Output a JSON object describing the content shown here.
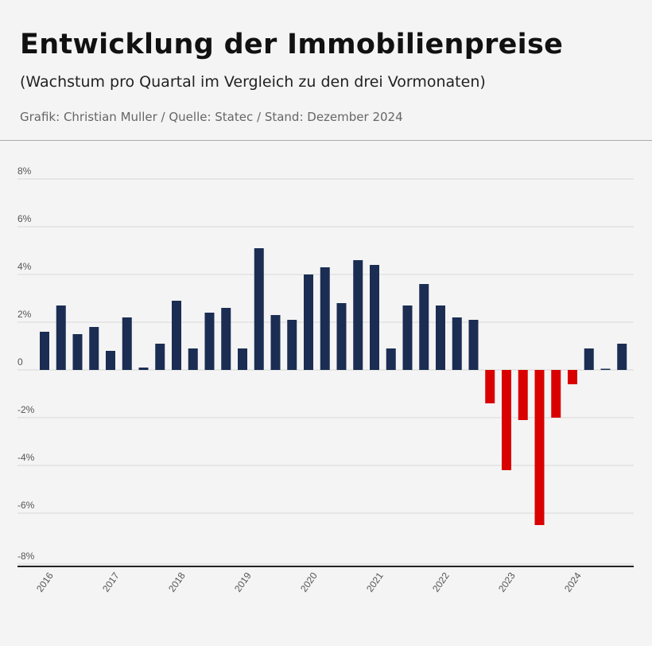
{
  "header": {
    "title": "Entwicklung der Immobilienpreise",
    "subtitle": "(Wachstum pro Quartal im Vergleich zu den drei Vormonaten)",
    "source": "Grafik: Christian Muller / Quelle: Statec / Stand: Dezember 2024"
  },
  "chart_data": {
    "type": "bar",
    "title": "Entwicklung der Immobilienpreise",
    "subtitle": "(Wachstum pro Quartal im Vergleich zu den drei Vormonaten)",
    "xlabel": "",
    "ylabel": "",
    "ylim": [
      -8,
      8
    ],
    "yticks": [
      "8%",
      "6%",
      "4%",
      "2%",
      "0",
      "-2%",
      "-4%",
      "-6%",
      "-8%"
    ],
    "ytick_values": [
      8,
      6,
      4,
      2,
      0,
      -2,
      -4,
      -6,
      -8
    ],
    "xtick_labels": [
      "2016",
      "2017",
      "2018",
      "2019",
      "2020",
      "2021",
      "2022",
      "2023",
      "2024"
    ],
    "grid": true,
    "categories": [
      "2016 Q1",
      "2016 Q2",
      "2016 Q3",
      "2016 Q4",
      "2017 Q1",
      "2017 Q2",
      "2017 Q3",
      "2017 Q4",
      "2018 Q1",
      "2018 Q2",
      "2018 Q3",
      "2018 Q4",
      "2019 Q1",
      "2019 Q2",
      "2019 Q3",
      "2019 Q4",
      "2020 Q1",
      "2020 Q2",
      "2020 Q3",
      "2020 Q4",
      "2021 Q1",
      "2021 Q2",
      "2021 Q3",
      "2021 Q4",
      "2022 Q1",
      "2022 Q2",
      "2022 Q3",
      "2022 Q4",
      "2023 Q1",
      "2023 Q2",
      "2023 Q3",
      "2023 Q4",
      "2024 Q1",
      "2024 Q2",
      "2024 Q3",
      "2024 Q4"
    ],
    "values": [
      1.6,
      2.7,
      1.5,
      1.8,
      0.8,
      2.2,
      0.1,
      1.1,
      2.9,
      0.9,
      2.4,
      2.6,
      0.9,
      5.1,
      2.3,
      2.1,
      4.0,
      4.3,
      2.8,
      4.6,
      4.4,
      0.9,
      2.7,
      3.6,
      2.7,
      2.2,
      2.1,
      -1.4,
      -4.2,
      -2.1,
      -6.5,
      -2.0,
      -0.6,
      0.9,
      0.05,
      1.1
    ],
    "colors": {
      "positive": "#1b2d52",
      "negative": "#d90000"
    }
  }
}
